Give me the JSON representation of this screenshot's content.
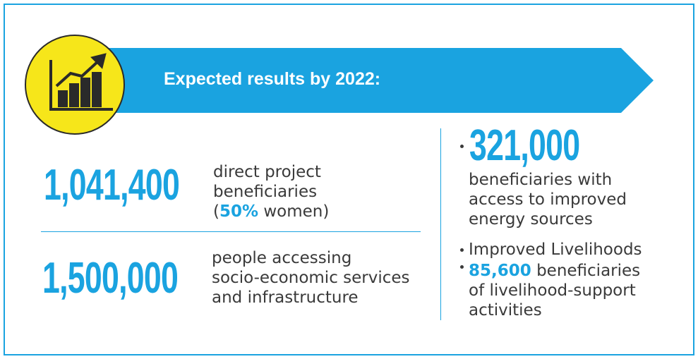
{
  "banner": {
    "title": "Expected results by 2022:"
  },
  "left": {
    "items": [
      {
        "number": "1,041,400",
        "lines": [
          "direct project",
          "beneficiaries"
        ],
        "note": {
          "open": "(",
          "highlight": "50%",
          "rest": " women)"
        }
      },
      {
        "number": "1,500,000",
        "lines": [
          "people accessing",
          "socio-economic services",
          "and infrastructure"
        ]
      }
    ]
  },
  "right": {
    "number": "321,000",
    "lines": [
      "beneficiaries with",
      "access to improved",
      "energy sources"
    ],
    "bullets": [
      {
        "text": "Improved Livelihoods"
      },
      {
        "highlight": "85,600",
        "rest": " beneficiaries",
        "lines": [
          "of livelihood-support",
          "activities"
        ]
      }
    ]
  }
}
